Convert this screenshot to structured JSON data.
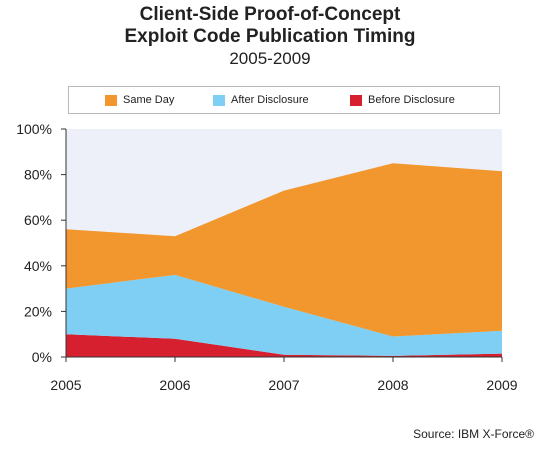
{
  "chart_data": {
    "type": "area",
    "stacked": true,
    "title": "Client-Side Proof-of-Concept",
    "title_line2": "Exploit Code Publication Timing",
    "subtitle": "2005-2009",
    "source": "Source: IBM X-Force®",
    "x": [
      "2005",
      "2006",
      "2007",
      "2008",
      "2009"
    ],
    "ylim": [
      0,
      100
    ],
    "y_ticks": [
      "0%",
      "20%",
      "40%",
      "60%",
      "80%",
      "100%"
    ],
    "legend_position": "top",
    "series": [
      {
        "name": "Before Disclosure",
        "color": "#d6202f",
        "values": [
          10,
          8,
          1,
          0.5,
          1.5
        ]
      },
      {
        "name": "After Disclosure",
        "color": "#7fcff4",
        "values": [
          20,
          28,
          21,
          8.5,
          10
        ]
      },
      {
        "name": "Same Day",
        "color": "#f2962e",
        "values": [
          26,
          17,
          51,
          76,
          70
        ]
      }
    ],
    "plot_background": "#eef0f9"
  }
}
